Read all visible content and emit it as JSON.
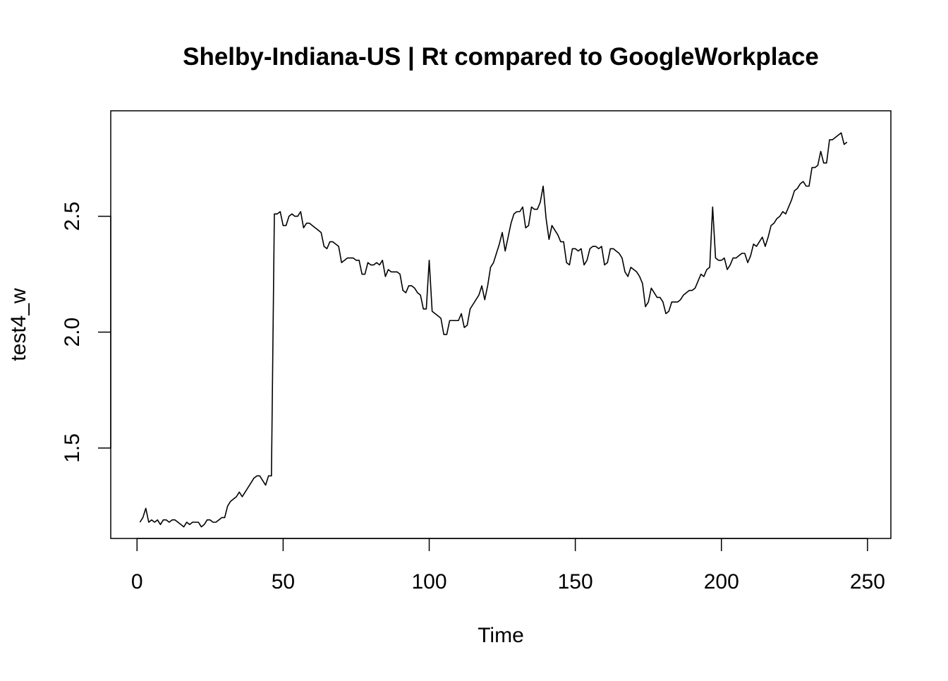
{
  "chart_data": {
    "type": "line",
    "title": "Shelby-Indiana-US | Rt compared to GoogleWorkplace",
    "xlabel": "Time",
    "ylabel": "test4_w",
    "xlim": [
      -9,
      258
    ],
    "ylim": [
      1.11,
      2.955
    ],
    "x_ticks": [
      0,
      50,
      100,
      150,
      200,
      250
    ],
    "y_ticks": [
      1.5,
      2.0,
      2.5
    ],
    "x_tick_labels": [
      "0",
      "50",
      "100",
      "150",
      "200",
      "250"
    ],
    "y_tick_labels": [
      "1.5",
      "2.0",
      "2.5"
    ],
    "grid": false,
    "legend": "none",
    "series": [
      {
        "color": "#000000",
        "x_start": 1,
        "x_step": 1,
        "values": [
          1.18,
          1.2,
          1.24,
          1.18,
          1.19,
          1.18,
          1.19,
          1.17,
          1.19,
          1.19,
          1.18,
          1.19,
          1.19,
          1.18,
          1.17,
          1.16,
          1.18,
          1.17,
          1.18,
          1.18,
          1.18,
          1.16,
          1.17,
          1.19,
          1.19,
          1.18,
          1.18,
          1.19,
          1.2,
          1.2,
          1.25,
          1.27,
          1.28,
          1.29,
          1.31,
          1.29,
          1.31,
          1.33,
          1.35,
          1.37,
          1.38,
          1.38,
          1.36,
          1.34,
          1.38,
          1.38,
          2.51,
          2.51,
          2.52,
          2.46,
          2.46,
          2.5,
          2.51,
          2.5,
          2.5,
          2.52,
          2.45,
          2.47,
          2.47,
          2.46,
          2.45,
          2.44,
          2.43,
          2.37,
          2.36,
          2.39,
          2.39,
          2.38,
          2.37,
          2.3,
          2.31,
          2.32,
          2.32,
          2.32,
          2.31,
          2.31,
          2.25,
          2.25,
          2.3,
          2.29,
          2.29,
          2.3,
          2.29,
          2.31,
          2.24,
          2.27,
          2.26,
          2.26,
          2.26,
          2.25,
          2.18,
          2.17,
          2.2,
          2.2,
          2.19,
          2.17,
          2.16,
          2.1,
          2.1,
          2.31,
          2.09,
          2.08,
          2.07,
          2.06,
          1.99,
          1.99,
          2.05,
          2.05,
          2.05,
          2.05,
          2.08,
          2.02,
          2.03,
          2.1,
          2.12,
          2.14,
          2.16,
          2.2,
          2.14,
          2.2,
          2.28,
          2.3,
          2.34,
          2.38,
          2.43,
          2.35,
          2.41,
          2.47,
          2.51,
          2.52,
          2.52,
          2.54,
          2.45,
          2.46,
          2.54,
          2.53,
          2.53,
          2.56,
          2.63,
          2.49,
          2.4,
          2.46,
          2.44,
          2.42,
          2.39,
          2.39,
          2.3,
          2.29,
          2.36,
          2.36,
          2.35,
          2.36,
          2.29,
          2.31,
          2.36,
          2.37,
          2.37,
          2.36,
          2.37,
          2.29,
          2.3,
          2.36,
          2.36,
          2.35,
          2.34,
          2.32,
          2.26,
          2.24,
          2.28,
          2.27,
          2.26,
          2.24,
          2.21,
          2.11,
          2.13,
          2.19,
          2.17,
          2.15,
          2.15,
          2.13,
          2.08,
          2.09,
          2.13,
          2.13,
          2.13,
          2.14,
          2.16,
          2.17,
          2.18,
          2.18,
          2.19,
          2.22,
          2.25,
          2.24,
          2.27,
          2.28,
          2.54,
          2.32,
          2.31,
          2.31,
          2.32,
          2.27,
          2.29,
          2.32,
          2.32,
          2.33,
          2.34,
          2.34,
          2.3,
          2.33,
          2.38,
          2.37,
          2.39,
          2.41,
          2.37,
          2.41,
          2.46,
          2.47,
          2.49,
          2.5,
          2.52,
          2.51,
          2.54,
          2.57,
          2.61,
          2.62,
          2.64,
          2.65,
          2.63,
          2.63,
          2.71,
          2.71,
          2.72,
          2.78,
          2.73,
          2.73,
          2.83,
          2.83,
          2.84,
          2.85,
          2.86,
          2.81,
          2.82
        ]
      }
    ]
  }
}
